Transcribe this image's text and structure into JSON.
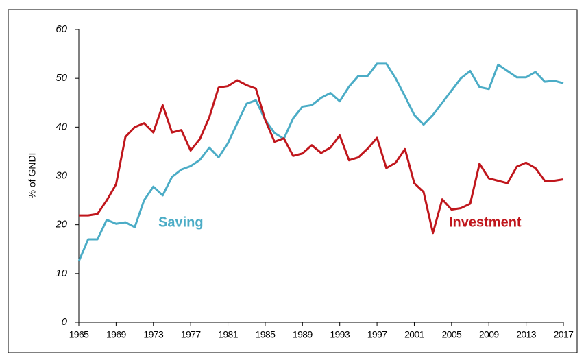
{
  "chart_data": {
    "type": "line",
    "y_label": "% of GNDI",
    "x": [
      1965,
      1966,
      1967,
      1968,
      1969,
      1970,
      1971,
      1972,
      1973,
      1974,
      1975,
      1976,
      1977,
      1978,
      1979,
      1980,
      1981,
      1982,
      1983,
      1984,
      1985,
      1986,
      1987,
      1988,
      1989,
      1990,
      1991,
      1992,
      1993,
      1994,
      1995,
      1996,
      1997,
      1998,
      1999,
      2000,
      2001,
      2002,
      2003,
      2004,
      2005,
      2006,
      2007,
      2008,
      2009,
      2010,
      2011,
      2012,
      2013,
      2014,
      2015,
      2016,
      2017
    ],
    "series": [
      {
        "name": "Saving",
        "color": "#4bacc6",
        "values": [
          12.5,
          17,
          17,
          21,
          20.2,
          20.5,
          19.5,
          25,
          27.8,
          26,
          29.8,
          31.3,
          32,
          33.3,
          35.8,
          33.8,
          36.7,
          40.8,
          44.8,
          45.5,
          41.5,
          38.8,
          37.6,
          41.8,
          44.2,
          44.5,
          46,
          47,
          45.3,
          48.3,
          50.5,
          50.5,
          53,
          53,
          50,
          46.3,
          42.5,
          40.5,
          42.5,
          45,
          47.5,
          50,
          51.5,
          48.2,
          47.8,
          52.8,
          51.5,
          50.2,
          50.2,
          51.3,
          49.3,
          49.5,
          49
        ]
      },
      {
        "name": "Investment",
        "color": "#c0161c",
        "values": [
          21.9,
          21.9,
          22.2,
          25,
          28.3,
          38,
          40,
          40.8,
          38.9,
          44.5,
          38.9,
          39.4,
          35.2,
          37.6,
          42,
          48.1,
          48.4,
          49.6,
          48.6,
          47.9,
          41.5,
          37,
          37.7,
          34.1,
          34.6,
          36.3,
          34.7,
          35.8,
          38.3,
          33.2,
          33.8,
          35.6,
          37.8,
          31.6,
          32.7,
          35.5,
          28.5,
          26.7,
          18.3,
          25.2,
          23.1,
          23.4,
          24.3,
          32.5,
          29.5,
          29,
          28.5,
          31.9,
          32.7,
          31.6,
          29,
          29,
          29.3
        ]
      }
    ],
    "xlim": [
      1965,
      2017
    ],
    "xticks": [
      1965,
      1969,
      1973,
      1977,
      1981,
      1985,
      1989,
      1993,
      1997,
      2001,
      2005,
      2009,
      2013,
      2017
    ],
    "ylim": [
      0,
      60
    ],
    "yticks": [
      0,
      10,
      20,
      30,
      40,
      50,
      60
    ],
    "grid": false
  }
}
